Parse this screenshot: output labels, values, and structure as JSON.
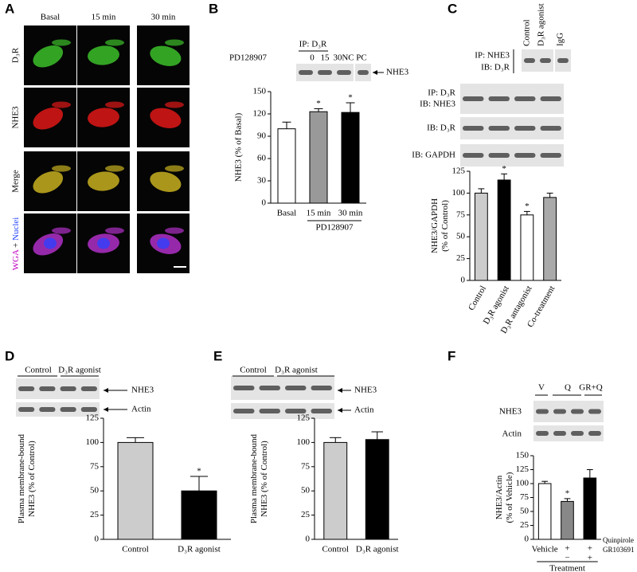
{
  "panel_a": {
    "label": "A",
    "columns": [
      "Basal",
      "15 min",
      "30 min"
    ],
    "rows": [
      "D₃R",
      "NHE3",
      "Merge"
    ],
    "stain": {
      "wga": "WGA",
      "plus": "+",
      "nuclei": "Nuclei"
    }
  },
  "chart_data": [
    {
      "type": "bar",
      "panel": "B",
      "y_label": [
        "NHE3 (% of Basal)"
      ],
      "categories": [
        "Basal",
        "15 min",
        "30 min"
      ],
      "values": [
        100,
        123,
        122
      ],
      "errors": [
        9,
        4,
        13
      ],
      "significance": [
        null,
        "*",
        "*"
      ],
      "colors": [
        "#ffffff",
        "#999999",
        "#000000"
      ],
      "ylim": [
        0,
        150
      ],
      "yticks": [
        0,
        30,
        60,
        90,
        120,
        150
      ],
      "group_label": "PD128907",
      "blot_labels": [
        "IP: D₃R",
        "PD128907",
        "0",
        "15",
        "30",
        "NC",
        "PC",
        "NHE3"
      ]
    },
    {
      "type": "bar",
      "panel": "C",
      "y_label": [
        "NHE3/GAPDH",
        "(% of Control)"
      ],
      "categories": [
        "Control",
        "D₃R agonist",
        "D₃R antagonist",
        "Co-treatment"
      ],
      "values": [
        100,
        115,
        75,
        95
      ],
      "errors": [
        5,
        7,
        4,
        5
      ],
      "significance": [
        null,
        "*",
        "*",
        null
      ],
      "colors": [
        "#cccccc",
        "#000000",
        "#ffffff",
        "#aaaaaa"
      ],
      "ylim": [
        0,
        125
      ],
      "yticks": [
        0,
        25,
        50,
        75,
        100,
        125
      ],
      "blot_labels": [
        "Control",
        "D₃R agonist",
        "IgG",
        "IP: NHE3",
        "IB: D₃R",
        "IP: D₃R",
        "IB: NHE3",
        "IB: D₃R",
        "IB: GAPDH"
      ]
    },
    {
      "type": "bar",
      "panel": "D",
      "y_label": [
        "Plasma membrane-bound",
        "NHE3 (% of Control)"
      ],
      "categories": [
        "Control",
        "D₃R agonist"
      ],
      "values": [
        100,
        50
      ],
      "errors": [
        5,
        15
      ],
      "significance": [
        null,
        "*"
      ],
      "colors": [
        "#cccccc",
        "#000000"
      ],
      "ylim": [
        0,
        125
      ],
      "yticks": [
        0,
        25,
        50,
        75,
        100,
        125
      ],
      "blot_labels": [
        "Control",
        "D₃R agonist",
        "NHE3",
        "Actin"
      ]
    },
    {
      "type": "bar",
      "panel": "E",
      "y_label": [
        "Plasma membrane-bound",
        "NHE3 (% of Control)"
      ],
      "categories": [
        "Control",
        "D₃R agonist"
      ],
      "values": [
        100,
        103
      ],
      "errors": [
        5,
        8
      ],
      "significance": [
        null,
        null
      ],
      "colors": [
        "#cccccc",
        "#000000"
      ],
      "ylim": [
        0,
        125
      ],
      "yticks": [
        0,
        25,
        50,
        75,
        100,
        125
      ],
      "blot_labels": [
        "Control",
        "D₃R agonist",
        "NHE3",
        "Actin"
      ]
    },
    {
      "type": "bar",
      "panel": "F",
      "y_label": [
        "NHE3/Actin",
        "(% of Vehicle)"
      ],
      "categories": [
        "Vehicle",
        null,
        null
      ],
      "values": [
        100,
        68,
        110
      ],
      "errors": [
        4,
        5,
        15
      ],
      "significance": [
        null,
        "*",
        null
      ],
      "colors": [
        "#ffffff",
        "#888888",
        "#000000"
      ],
      "ylim": [
        0,
        150
      ],
      "yticks": [
        0,
        25,
        50,
        75,
        100,
        125,
        150
      ],
      "treatments": [
        {
          "name": "Quinpirole",
          "marks": [
            null,
            "+",
            "+"
          ]
        },
        {
          "name": "GR103691",
          "marks": [
            null,
            "−",
            "+"
          ]
        }
      ],
      "group_label": "Treatment",
      "blot_labels": [
        "V",
        "Q",
        "GR+Q",
        "NHE3",
        "Actin"
      ]
    }
  ]
}
